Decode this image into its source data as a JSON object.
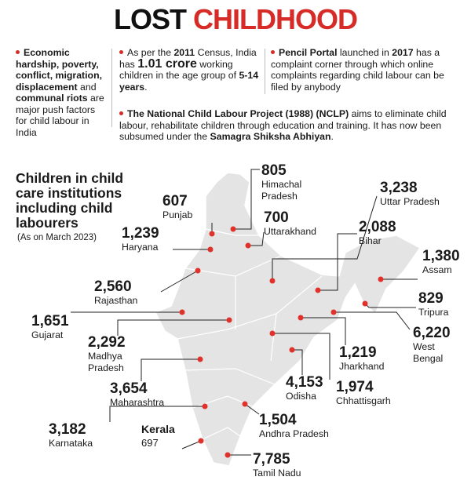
{
  "title": [
    "LOST",
    "CHILDHOOD"
  ],
  "notes": [
    {
      "segments": [
        {
          "text": "Economic hardship, poverty, conflict, migration, displacement",
          "bold": true
        },
        {
          "text": " and ",
          "bold": false
        },
        {
          "text": "communal riots",
          "bold": true
        },
        {
          "text": " are major push factors for child labour in India",
          "bold": false
        }
      ]
    },
    {
      "segments": [
        {
          "text": "As per the ",
          "bold": false
        },
        {
          "text": "2011",
          "bold": true
        },
        {
          "text": " Census, India has ",
          "bold": false
        },
        {
          "text": "1.01 crore",
          "bold": true
        },
        {
          "text": " working children in the age group of ",
          "bold": false
        },
        {
          "text": "5-14 years",
          "bold": true
        },
        {
          "text": ".",
          "bold": false
        }
      ]
    },
    {
      "segments": [
        {
          "text": "Pencil Portal",
          "bold": true
        },
        {
          "text": " launched in ",
          "bold": false
        },
        {
          "text": "2017",
          "bold": true
        },
        {
          "text": " has a complaint corner through which online complaints regarding child labour can be filed by anybody",
          "bold": false
        }
      ]
    },
    {
      "segments": [
        {
          "text": "The National Child Labour Project (1988) (NCLP)",
          "bold": true
        },
        {
          "text": " aims to eliminate child labour, rehabilitate children through education and training. It has now been subsumed under the ",
          "bold": false
        },
        {
          "text": "Samagra Shiksha Abhiyan",
          "bold": true
        },
        {
          "text": ".",
          "bold": false
        }
      ]
    }
  ],
  "map": {
    "heading": "Children in child care institutions including child labourers",
    "subheading": "(As on March 2023)",
    "states": [
      {
        "name": "Himachal Pradesh",
        "count": "805"
      },
      {
        "name": "Punjab",
        "count": "607"
      },
      {
        "name": "Uttar Pradesh",
        "count": "3,238"
      },
      {
        "name": "Uttarakhand",
        "count": "700"
      },
      {
        "name": "Haryana",
        "count": "1,239"
      },
      {
        "name": "Bihar",
        "count": "2,088"
      },
      {
        "name": "Assam",
        "count": "1,380"
      },
      {
        "name": "Rajasthan",
        "count": "2,560"
      },
      {
        "name": "Tripura",
        "count": "829"
      },
      {
        "name": "Gujarat",
        "count": "1,651"
      },
      {
        "name": "West Bengal",
        "count": "6,220"
      },
      {
        "name": "Madhya Pradesh",
        "count": "2,292"
      },
      {
        "name": "Jharkhand",
        "count": "1,219"
      },
      {
        "name": "Maharashtra",
        "count": "3,654"
      },
      {
        "name": "Odisha",
        "count": "4,153"
      },
      {
        "name": "Chhattisgarh",
        "count": "1,974"
      },
      {
        "name": "Andhra Pradesh",
        "count": "1,504"
      },
      {
        "name": "Karnataka",
        "count": "3,182"
      },
      {
        "name": "Kerala",
        "count": "697"
      },
      {
        "name": "Tamil Nadu",
        "count": "7,785"
      }
    ]
  }
}
